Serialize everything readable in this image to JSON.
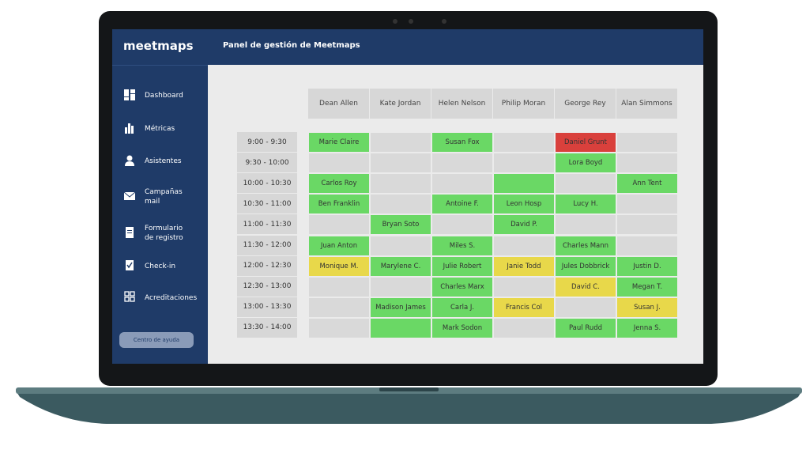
{
  "header": {
    "brand": "meetmaps",
    "title": "Panel de gestión de Meetmaps"
  },
  "sidebar": {
    "items": [
      "Dashboard",
      "Métricas",
      "Asistentes",
      "Campañas mail",
      "Formulario de registro",
      "Check-in",
      "Acreditaciones"
    ],
    "help_button": "Centro de ayuda"
  },
  "schedule": {
    "columns": [
      "Dean Allen",
      "Kate Jordan",
      "Helen Nelson",
      "Philip Moran",
      "George Rey",
      "Alan Simmons"
    ],
    "rows": [
      {
        "time": "9:00 - 9:30",
        "cells": [
          {
            "name": "Marie Claire",
            "color": "#6ad865"
          },
          {
            "color": "#d9d9d9"
          },
          {
            "name": "Susan Fox",
            "color": "#6ad865"
          },
          {
            "color": "#d9d9d9"
          },
          {
            "name": "Daniel Grunt",
            "color": "#d9403c"
          },
          {
            "color": "#d9d9d9"
          }
        ]
      },
      {
        "time": "9:30 - 10:00",
        "cells": [
          {
            "color": "#d9d9d9"
          },
          {
            "color": "#d9d9d9"
          },
          {
            "color": "#d9d9d9"
          },
          {
            "color": "#d9d9d9"
          },
          {
            "name": "Lora Boyd",
            "color": "#6ad865"
          },
          {
            "color": "#d9d9d9"
          }
        ]
      },
      {
        "time": "10:00 - 10:30",
        "cells": [
          {
            "name": "Carlos Roy",
            "color": "#6ad865"
          },
          {
            "color": "#d9d9d9"
          },
          {
            "color": "#d9d9d9"
          },
          {
            "color": "#6ad865"
          },
          {
            "color": "#d9d9d9"
          },
          {
            "name": "Ann Tent",
            "color": "#6ad865"
          }
        ]
      },
      {
        "time": "10:30 - 11:00",
        "cells": [
          {
            "name": "Ben Franklin",
            "color": "#6ad865"
          },
          {
            "color": "#d9d9d9"
          },
          {
            "name": "Antoine F.",
            "color": "#6ad865"
          },
          {
            "name": "Leon Hosp",
            "color": "#6ad865"
          },
          {
            "name": "Lucy H.",
            "color": "#6ad865"
          },
          {
            "color": "#d9d9d9"
          }
        ]
      },
      {
        "time": "11:00 - 11:30",
        "cells": [
          {
            "color": "#d9d9d9"
          },
          {
            "name": "Bryan Soto",
            "color": "#6ad865"
          },
          {
            "color": "#d9d9d9"
          },
          {
            "name": "David P.",
            "color": "#6ad865"
          },
          {
            "color": "#d9d9d9"
          },
          {
            "color": "#d9d9d9"
          }
        ]
      },
      {
        "time": "11:30 - 12:00",
        "cells": [
          {
            "name": "Juan Anton",
            "color": "#6ad865"
          },
          {
            "color": "#d9d9d9"
          },
          {
            "name": "Miles S.",
            "color": "#6ad865"
          },
          {
            "color": "#d9d9d9"
          },
          {
            "name": "Charles Mann",
            "color": "#6ad865"
          },
          {
            "color": "#d9d9d9"
          }
        ]
      },
      {
        "time": "12:00 - 12:30",
        "cells": [
          {
            "name": "Monique M.",
            "color": "#e8d84a"
          },
          {
            "name": "Marylene C.",
            "color": "#6ad865"
          },
          {
            "name": "Julie Robert",
            "color": "#6ad865"
          },
          {
            "name": "Janie Todd",
            "color": "#e8d84a"
          },
          {
            "name": "Jules Dobbrick",
            "color": "#6ad865"
          },
          {
            "name": "Justin D.",
            "color": "#6ad865"
          }
        ]
      },
      {
        "time": "12:30 - 13:00",
        "cells": [
          {
            "color": "#d9d9d9"
          },
          {
            "color": "#d9d9d9"
          },
          {
            "name": "Charles Marx",
            "color": "#6ad865"
          },
          {
            "color": "#d9d9d9"
          },
          {
            "name": "David C.",
            "color": "#e8d84a"
          },
          {
            "name": "Megan T.",
            "color": "#6ad865"
          }
        ]
      },
      {
        "time": "13:00 - 13:30",
        "cells": [
          {
            "color": "#d9d9d9"
          },
          {
            "name": "Madison James",
            "color": "#6ad865"
          },
          {
            "name": "Carla J.",
            "color": "#6ad865"
          },
          {
            "name": "Francis Col",
            "color": "#e8d84a"
          },
          {
            "color": "#d9d9d9"
          },
          {
            "name": "Susan J.",
            "color": "#e8d84a"
          }
        ]
      },
      {
        "time": "13:30 - 14:00",
        "cells": [
          {
            "color": "#d9d9d9"
          },
          {
            "color": "#6ad865"
          },
          {
            "name": "Mark Sodon",
            "color": "#6ad865"
          },
          {
            "color": "#d9d9d9"
          },
          {
            "name": "Paul Rudd",
            "color": "#6ad865"
          },
          {
            "name": "Jenna S.",
            "color": "#6ad865"
          }
        ]
      }
    ]
  }
}
